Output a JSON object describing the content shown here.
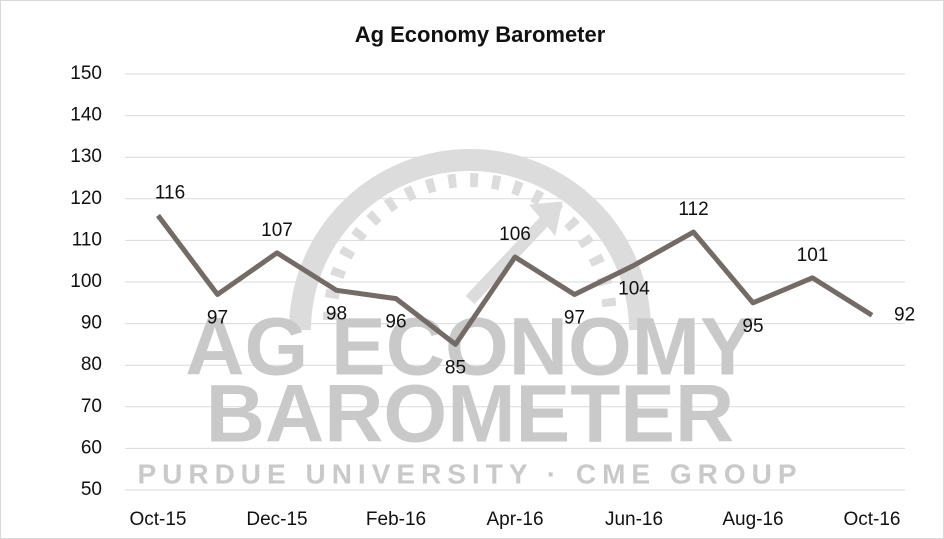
{
  "chart_data": {
    "type": "line",
    "title": "Ag Economy Barometer",
    "categories": [
      "Oct-15",
      null,
      "Dec-15",
      null,
      "Feb-16",
      null,
      "Apr-16",
      null,
      "Jun-16",
      null,
      "Aug-16",
      null,
      "Oct-16"
    ],
    "series": [
      {
        "name": "Ag Economy Barometer",
        "color": "#756b66",
        "values": [
          116,
          97,
          107,
          98,
          96,
          85,
          106,
          97,
          104,
          112,
          95,
          101,
          92
        ]
      }
    ],
    "ylim": [
      50,
      150
    ],
    "yticks": [
      50,
      60,
      70,
      80,
      90,
      100,
      110,
      120,
      130,
      140,
      150
    ],
    "grid": true,
    "watermark": [
      "AG ECONOMY",
      "BAROMETER",
      "PURDUE UNIVERSITY  ·  CME GROUP"
    ]
  }
}
